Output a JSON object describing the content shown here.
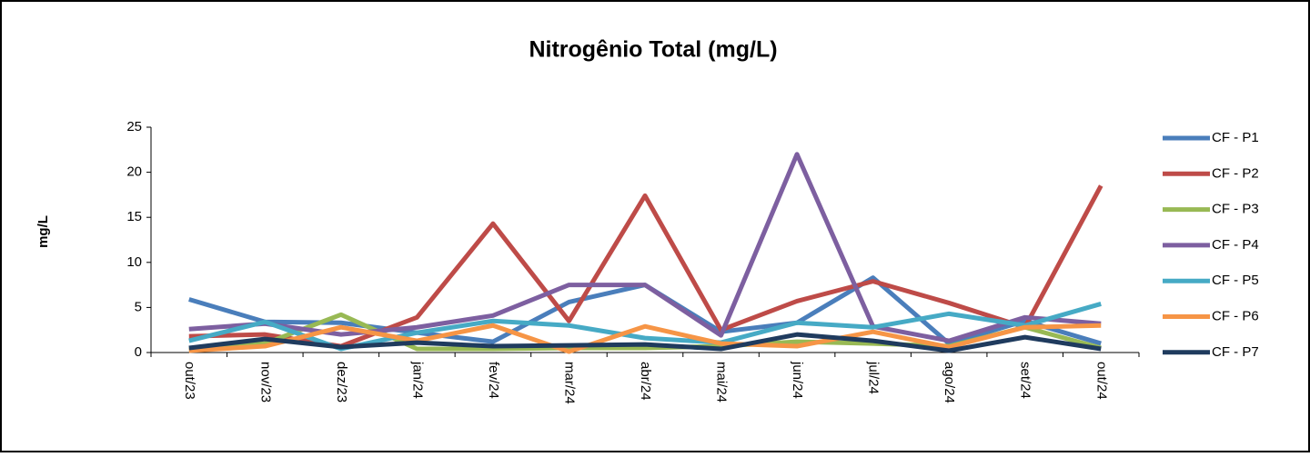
{
  "chart_data": {
    "type": "line",
    "title": "Nitrogênio Total (mg/L)",
    "y_label": "mg/L",
    "categories": [
      "out/23",
      "nov/23",
      "dez/23",
      "jan/24",
      "fev/24",
      "mar/24",
      "abr/24",
      "mai/24",
      "jun/24",
      "jul/24",
      "ago/24",
      "set/24",
      "out/24"
    ],
    "ylim": [
      0,
      25
    ],
    "yticks": [
      0,
      5,
      10,
      15,
      20,
      25
    ],
    "grid": false,
    "legend": "right",
    "series": [
      {
        "name": "CF - P1",
        "color": "#4a7ebb",
        "values": [
          5.9,
          3.4,
          3.3,
          2.2,
          1.2,
          5.6,
          7.5,
          2.3,
          3.3,
          8.3,
          1.0,
          3.5,
          1.0
        ]
      },
      {
        "name": "CF - P2",
        "color": "#be4b48",
        "values": [
          1.8,
          2.0,
          0.7,
          3.9,
          14.3,
          3.5,
          17.4,
          2.5,
          5.7,
          7.9,
          5.5,
          2.8,
          18.5
        ]
      },
      {
        "name": "CF - P3",
        "color": "#98b954",
        "values": [
          0.3,
          1.0,
          4.2,
          0.4,
          0.4,
          0.5,
          0.5,
          0.7,
          1.2,
          1.0,
          0.7,
          2.8,
          0.5
        ]
      },
      {
        "name": "CF - P4",
        "color": "#7d5fa0",
        "values": [
          2.6,
          3.2,
          2.0,
          2.8,
          4.1,
          7.5,
          7.5,
          1.9,
          22.0,
          2.9,
          1.3,
          3.9,
          3.2
        ]
      },
      {
        "name": "CF - P5",
        "color": "#46aac5",
        "values": [
          1.3,
          3.4,
          0.4,
          2.2,
          3.5,
          3.0,
          1.6,
          1.1,
          3.3,
          2.8,
          4.3,
          3.0,
          5.4
        ]
      },
      {
        "name": "CF - P6",
        "color": "#f69546",
        "values": [
          0.2,
          0.7,
          2.8,
          1.3,
          3.0,
          0.1,
          2.9,
          1.0,
          0.7,
          2.3,
          0.6,
          2.8,
          3.0
        ]
      },
      {
        "name": "CF - P7",
        "color": "#1f3b5e",
        "values": [
          0.5,
          1.5,
          0.6,
          1.1,
          0.7,
          0.8,
          0.9,
          0.4,
          2.0,
          1.3,
          0.2,
          1.7,
          0.4
        ]
      }
    ]
  }
}
